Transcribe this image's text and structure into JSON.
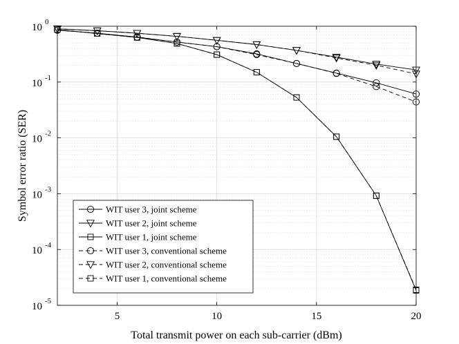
{
  "chart_data": {
    "type": "line",
    "xlabel": "Total transmit power on each sub-carrier (dBm)",
    "ylabel": "Symbol error ratio (SER)",
    "xlim": [
      2,
      20
    ],
    "ylim": [
      1e-05,
      1
    ],
    "yscale": "log",
    "grid": true,
    "legend_position": "bottom-left",
    "x_ticks": [
      {
        "value": 5,
        "label": "5"
      },
      {
        "value": 10,
        "label": "10"
      },
      {
        "value": 15,
        "label": "15"
      },
      {
        "value": 20,
        "label": "20"
      }
    ],
    "y_ticks": [
      {
        "value": 1,
        "base": "10",
        "exp": "0"
      },
      {
        "value": 0.1,
        "base": "10",
        "exp": "-1"
      },
      {
        "value": 0.01,
        "base": "10",
        "exp": "-2"
      },
      {
        "value": 0.001,
        "base": "10",
        "exp": "-3"
      },
      {
        "value": 0.0001,
        "base": "10",
        "exp": "-4"
      },
      {
        "value": 1e-05,
        "base": "10",
        "exp": "-5"
      }
    ],
    "x": [
      2,
      4,
      6,
      8,
      10,
      12,
      14,
      16,
      18,
      20
    ],
    "series": [
      {
        "name": "WIT user 3, joint scheme",
        "marker": "circle",
        "dash": "solid",
        "values": [
          0.85,
          0.75,
          0.64,
          0.52,
          0.43,
          0.32,
          0.215,
          0.145,
          0.097,
          0.061
        ]
      },
      {
        "name": "WIT user 2, joint scheme",
        "marker": "triangle-down",
        "dash": "solid",
        "values": [
          0.9,
          0.83,
          0.75,
          0.66,
          0.56,
          0.47,
          0.37,
          0.28,
          0.21,
          0.165
        ]
      },
      {
        "name": "WIT user 1, joint scheme",
        "marker": "square",
        "dash": "solid",
        "values": [
          0.87,
          0.74,
          0.63,
          0.49,
          0.31,
          0.15,
          0.053,
          0.0105,
          0.00092,
          1.85e-05
        ]
      },
      {
        "name": "WIT user 3, conventional scheme",
        "marker": "circle",
        "dash": "dashed",
        "values": [
          0.85,
          0.75,
          0.64,
          0.52,
          0.43,
          0.31,
          0.215,
          0.143,
          0.083,
          0.044
        ]
      },
      {
        "name": "WIT user 2, conventional scheme",
        "marker": "triangle-down",
        "dash": "dashed",
        "values": [
          0.9,
          0.83,
          0.75,
          0.66,
          0.56,
          0.47,
          0.37,
          0.27,
          0.2,
          0.14
        ]
      },
      {
        "name": "WIT user 1, conventional scheme",
        "marker": "square",
        "dash": "dashed",
        "values": [
          0.87,
          0.74,
          0.63,
          0.49,
          0.31,
          0.15,
          0.053,
          0.0105,
          0.00092,
          1.9e-05
        ]
      }
    ]
  }
}
